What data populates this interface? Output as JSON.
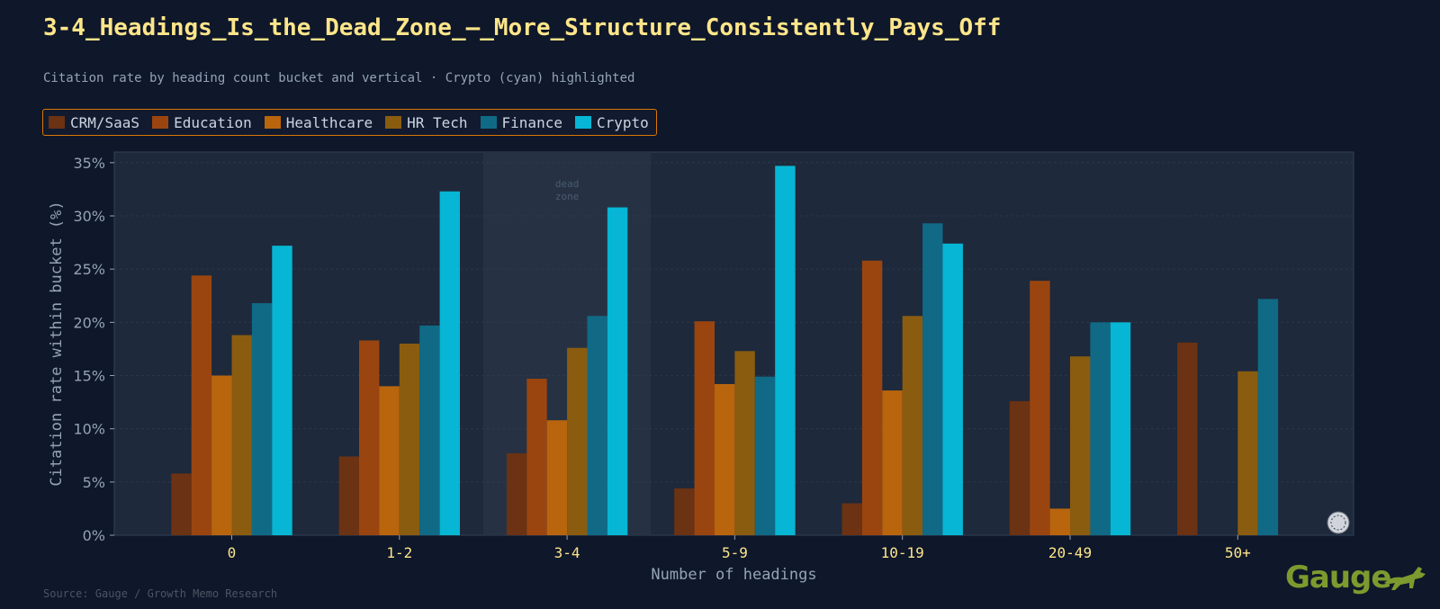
{
  "title": "3-4_Headings_Is_the_Dead_Zone_—_More_Structure_Consistently_Pays_Off",
  "subtitle": "Citation rate by heading count bucket and vertical · Crypto (cyan) highlighted",
  "source": "Source: Gauge / Growth Memo Research",
  "brand": "Gauge",
  "colors": {
    "background": "#0f172a",
    "plot_bg": "#1e293b",
    "dead_zone_bg": "#263244",
    "title": "#fde68a",
    "legend_border": "#d97706"
  },
  "chart_data": {
    "type": "bar",
    "title": "3-4_Headings_Is_the_Dead_Zone_—_More_Structure_Consistently_Pays_Off",
    "subtitle": "Citation rate by heading count bucket and vertical · Crypto (cyan) highlighted",
    "xlabel": "Number of headings",
    "ylabel": "Citation rate within bucket (%)",
    "ylim": [
      0,
      36
    ],
    "yticks": [
      0,
      5,
      10,
      15,
      20,
      25,
      30,
      35
    ],
    "ytick_labels": [
      "0%",
      "5%",
      "10%",
      "15%",
      "20%",
      "25%",
      "30%",
      "35%"
    ],
    "categories": [
      "0",
      "1-2",
      "3-4",
      "5-9",
      "10-19",
      "20-49",
      "50+"
    ],
    "legend_position": "top-left",
    "grid": true,
    "highlight_category": "3-4",
    "highlight_label": [
      "dead",
      "zone"
    ],
    "series": [
      {
        "name": "CRM/SaaS",
        "color": "#6b3213",
        "values": [
          5.8,
          7.4,
          7.7,
          4.4,
          3.0,
          12.6,
          18.1
        ]
      },
      {
        "name": "Education",
        "color": "#9a4510",
        "values": [
          24.4,
          18.3,
          14.7,
          20.1,
          25.8,
          23.9,
          null
        ]
      },
      {
        "name": "Healthcare",
        "color": "#b8650e",
        "values": [
          15.0,
          14.0,
          10.8,
          14.2,
          13.6,
          2.5,
          null
        ]
      },
      {
        "name": "HR Tech",
        "color": "#8a5c10",
        "values": [
          18.8,
          18.0,
          17.6,
          17.3,
          20.6,
          16.8,
          15.4
        ]
      },
      {
        "name": "Finance",
        "color": "#106a86",
        "values": [
          21.8,
          19.7,
          20.6,
          14.9,
          29.3,
          20.0,
          22.2
        ]
      },
      {
        "name": "Crypto",
        "color": "#06b6d4",
        "values": [
          27.2,
          32.3,
          30.8,
          34.7,
          27.4,
          20.0,
          null
        ]
      }
    ]
  }
}
